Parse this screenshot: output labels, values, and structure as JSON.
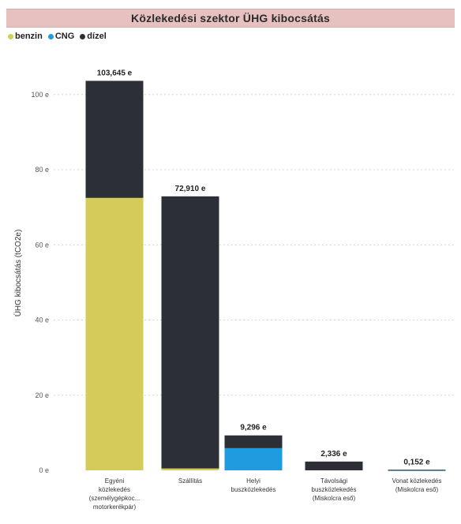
{
  "chart_data": {
    "type": "bar",
    "stacked": true,
    "title": "Közlekedési szektor ÜHG kibocsátás",
    "ylabel": "ÜHG kibocsátás (tCO2e)",
    "xlabel": "",
    "ylim": [
      0,
      105
    ],
    "yticks": [
      0,
      20,
      40,
      60,
      80,
      100
    ],
    "ytick_labels": [
      "0 e",
      "20 e",
      "40 e",
      "60 e",
      "80 e",
      "100 e"
    ],
    "grid": true,
    "legend_position": "top-left",
    "categories": [
      [
        "Egyéni",
        "közlekedés",
        "(személygépkoc...",
        "motorkerékpár)"
      ],
      [
        "Szállítás"
      ],
      [
        "Helyi",
        "buszközlekedés"
      ],
      [
        "Távolsági",
        "buszközlekedés",
        "(Miskolcra eső)"
      ],
      [
        "Vonat közlekedés",
        "(Miskolcra eső)"
      ]
    ],
    "series": [
      {
        "name": "benzin",
        "color": "#d4cc5a",
        "values": [
          72.5,
          0.5,
          0,
          0,
          0
        ]
      },
      {
        "name": "CNG",
        "color": "#1f9be0",
        "values": [
          0,
          0,
          5.9,
          0,
          0.05
        ]
      },
      {
        "name": "dízel",
        "color": "#2c2f36",
        "values": [
          31.145,
          72.41,
          3.396,
          2.336,
          0.102
        ]
      }
    ],
    "totals": [
      103.645,
      72.91,
      9.296,
      2.336,
      0.152
    ],
    "total_labels": [
      "103,645 e",
      "72,910 e",
      "9,296 e",
      "2,336 e",
      "0,152 e"
    ]
  }
}
